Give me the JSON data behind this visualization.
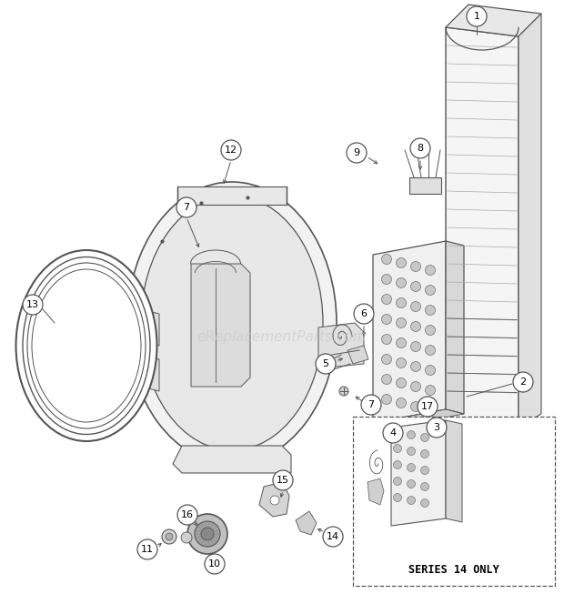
{
  "bg_color": "#ffffff",
  "watermark": "eReplacementParts.com",
  "watermark_color": "#c8c8c8",
  "watermark_alpha": 0.6,
  "line_color": "#555555",
  "label_fontsize": 8.5,
  "series14_text": "SERIES 14 ONLY"
}
